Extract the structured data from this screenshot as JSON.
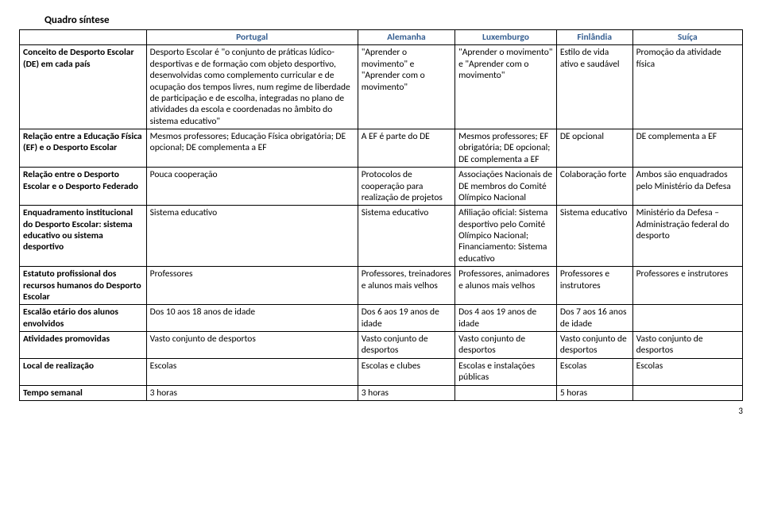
{
  "title": "Quadro síntese",
  "headers": {
    "blank": "",
    "c1": "Portugal",
    "c2": "Alemanha",
    "c3": "Luxemburgo",
    "c4": "Finlândia",
    "c5": "Suíça"
  },
  "rows": {
    "r1": {
      "label": "Conceito de Desporto Escolar (DE) em cada país",
      "c1": "Desporto Escolar é \"o conjunto de práticas lúdico-desportivas e de formação com objeto desportivo, desenvolvidas como complemento curricular e de ocupação dos tempos livres, num regime de liberdade de participação e de escolha, integradas no plano de atividades da escola e coordenadas no âmbito do sistema educativo\"",
      "c2": "\"Aprender o movimento\" e \"Aprender com o movimento\"",
      "c3": "\"Aprender o movimento\" e \"Aprender com o movimento\"",
      "c4": "Estilo de vida ativo e saudável",
      "c5": "Promoção da atividade física"
    },
    "r2": {
      "label": "Relação entre a Educação Física (EF) e o Desporto Escolar",
      "c1": "Mesmos professores; Educação Física obrigatória; DE opcional; DE complementa a EF",
      "c2": "A EF é parte do DE",
      "c3": "Mesmos professores; EF obrigatória; DE opcional; DE complementa a EF",
      "c4": "DE opcional",
      "c5": "DE complementa a EF"
    },
    "r3": {
      "label": "Relação entre o Desporto Escolar e o Desporto Federado",
      "c1": "Pouca cooperação",
      "c2": "Protocolos de cooperação para realização de projetos",
      "c3": "Associações Nacionais de DE membros do Comité Olímpico Nacional",
      "c4": "Colaboração forte",
      "c5": "Ambos são enquadrados pelo Ministério da Defesa"
    },
    "r4": {
      "label": "Enquadramento institucional do Desporto Escolar: sistema educativo ou sistema desportivo",
      "c1": "Sistema educativo",
      "c2": "Sistema educativo",
      "c3": "Afiliação oficial: Sistema desportivo pelo Comité Olímpico Nacional; Financiamento: Sistema educativo",
      "c4": "Sistema educativo",
      "c5": "Ministério da Defesa – Administração federal do desporto"
    },
    "r5": {
      "label": "Estatuto profissional dos recursos humanos do Desporto Escolar",
      "c1": "Professores",
      "c2": "Professores, treinadores e alunos mais velhos",
      "c3": "Professores, animadores e alunos mais velhos",
      "c4": "Professores e instrutores",
      "c5": "Professores e instrutores"
    },
    "r6": {
      "label": "Escalão etário dos alunos envolvidos",
      "c1": "Dos 10 aos 18 anos de idade",
      "c2": "Dos 6 aos 19 anos de idade",
      "c3": "Dos 4 aos 19 anos de idade",
      "c4": "Dos 7 aos 16 anos de idade",
      "c5": ""
    },
    "r7": {
      "label": "Atividades promovidas",
      "c1": "Vasto conjunto de desportos",
      "c2": "Vasto conjunto de desportos",
      "c3": "Vasto conjunto de desportos",
      "c4": "Vasto conjunto de desportos",
      "c5": "Vasto conjunto de desportos"
    },
    "r8": {
      "label": "Local de realização",
      "c1": "Escolas",
      "c2": "Escolas e clubes",
      "c3": "Escolas e instalações públicas",
      "c4": "Escolas",
      "c5": "Escolas"
    },
    "r9": {
      "label": "Tempo semanal",
      "c1": "3 horas",
      "c2": "3 horas",
      "c3": "",
      "c4": "5 horas",
      "c5": ""
    }
  },
  "pagenum": "3"
}
